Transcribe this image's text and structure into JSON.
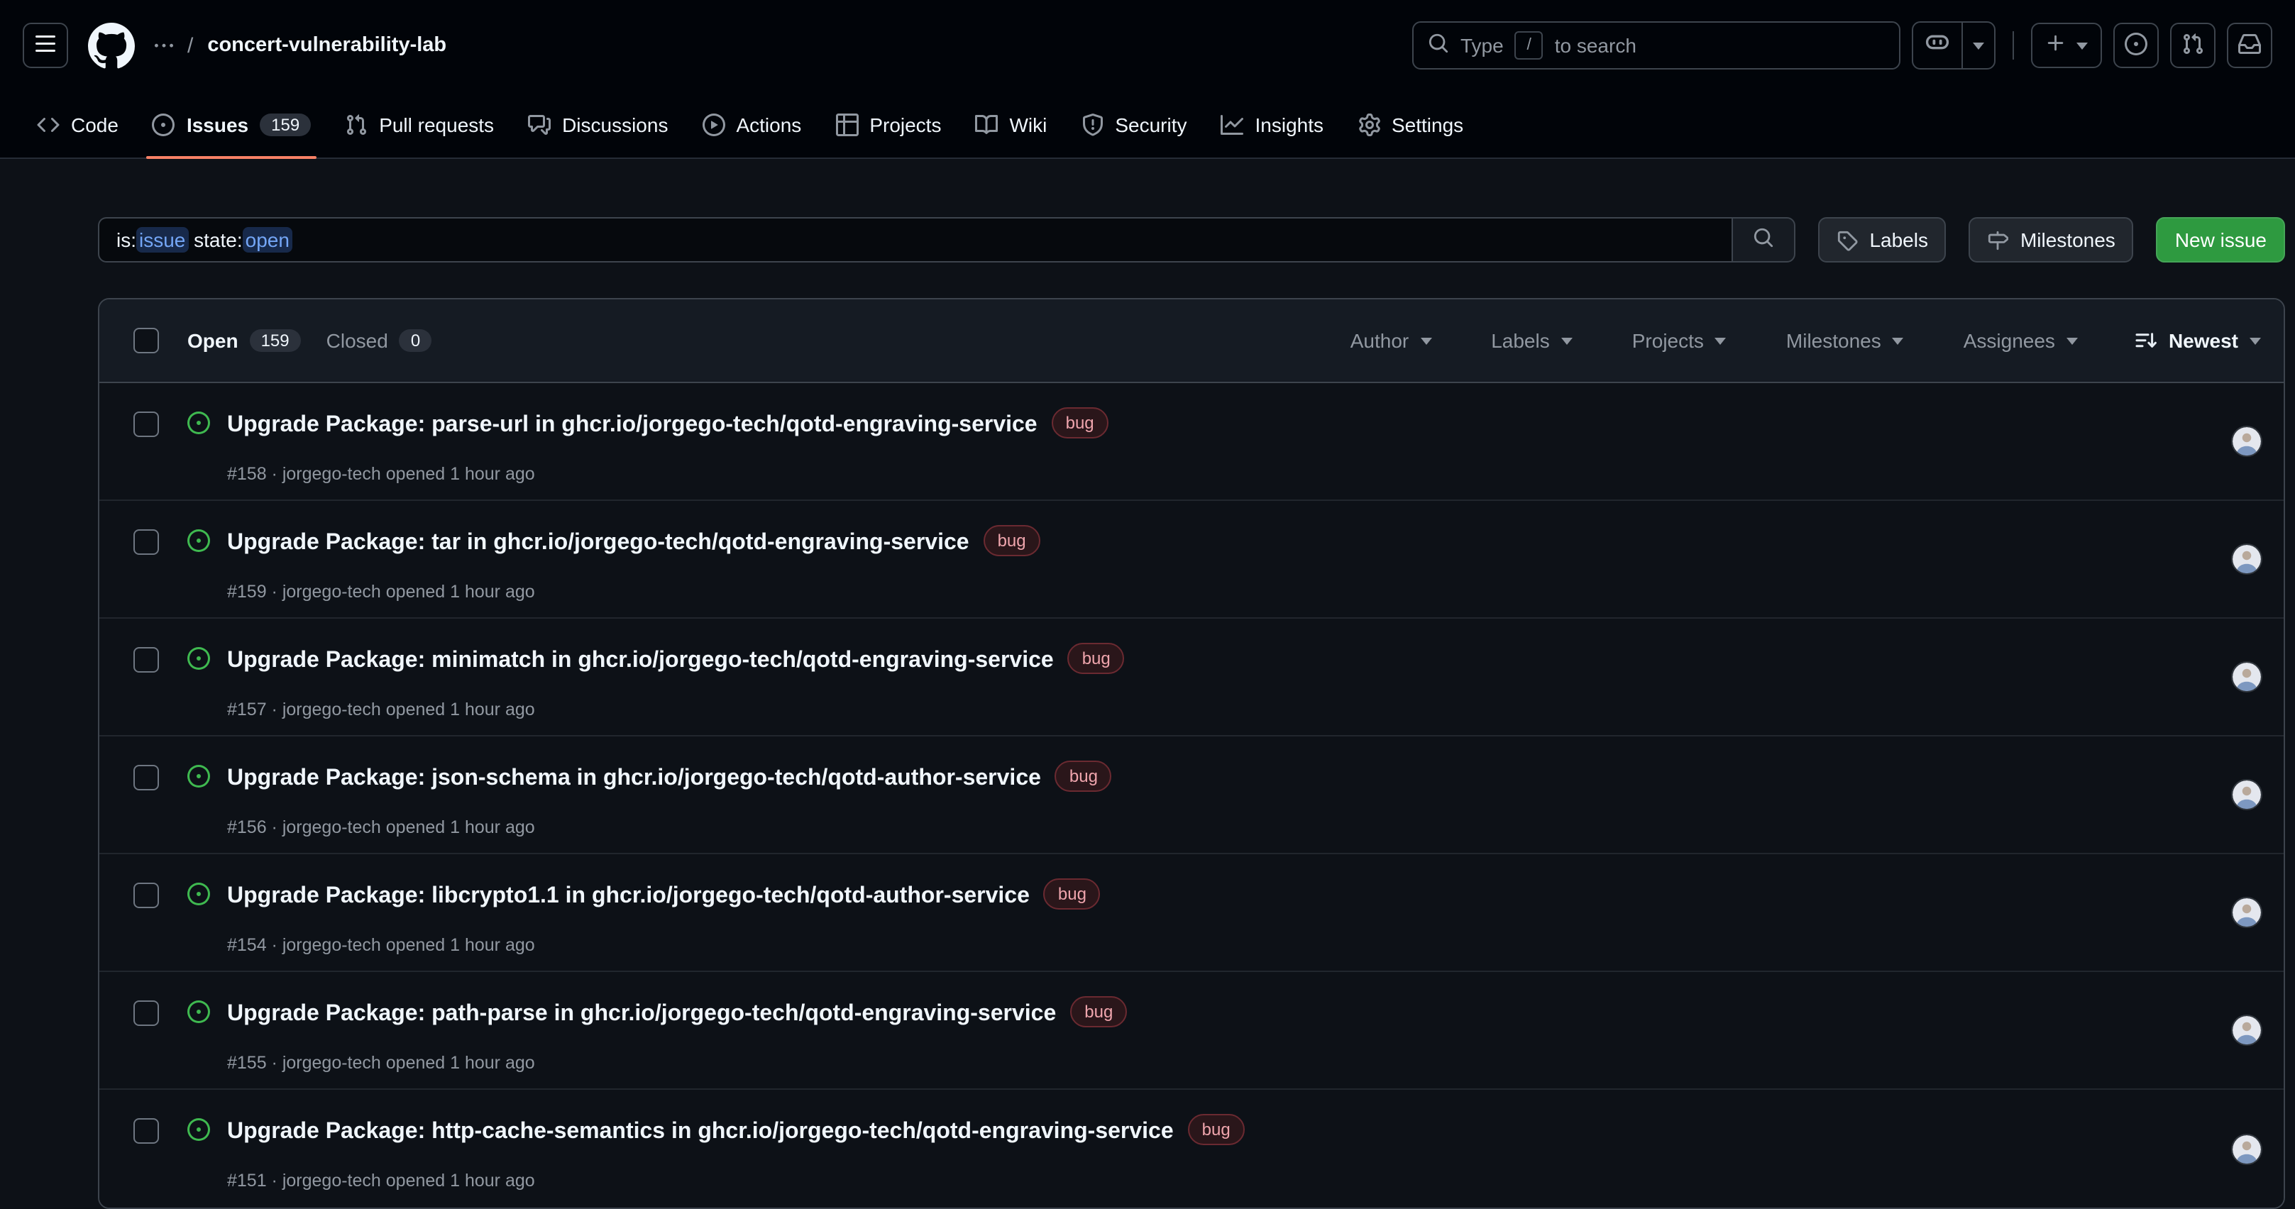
{
  "colors": {
    "header_bg": "#010409",
    "page_bg": "#0d1117",
    "panel_bg": "#151b23",
    "border": "#3d444d",
    "accent_underline": "#f78166",
    "open_green": "#3fb950",
    "new_issue_green": "#2e9a40",
    "qualifier_blue": "#74a6f6",
    "bug_label_text": "#efa5ad",
    "bug_label_bg": "#2a161a",
    "muted_text": "#9198a1"
  },
  "header": {
    "repo": "concert-vulnerability-lab",
    "breadcrumb_separator": "/",
    "search": {
      "prefix": "Type",
      "key": "/",
      "suffix": "to search"
    },
    "icons": [
      "hamburger-icon",
      "github-logo",
      "kebab-horizontal-icon",
      "copilot-icon",
      "plus-icon",
      "issue-opened-icon",
      "git-pull-request-icon",
      "inbox-icon"
    ]
  },
  "nav_tabs": [
    {
      "label": "Code",
      "icon": "code",
      "active": false,
      "count": null
    },
    {
      "label": "Issues",
      "icon": "issue",
      "active": true,
      "count": "159"
    },
    {
      "label": "Pull requests",
      "icon": "pr",
      "active": false,
      "count": null
    },
    {
      "label": "Discussions",
      "icon": "discussion",
      "active": false,
      "count": null
    },
    {
      "label": "Actions",
      "icon": "play",
      "active": false,
      "count": null
    },
    {
      "label": "Projects",
      "icon": "table",
      "active": false,
      "count": null
    },
    {
      "label": "Wiki",
      "icon": "book",
      "active": false,
      "count": null
    },
    {
      "label": "Security",
      "icon": "shield",
      "active": false,
      "count": null
    },
    {
      "label": "Insights",
      "icon": "graph",
      "active": false,
      "count": null
    },
    {
      "label": "Settings",
      "icon": "gear",
      "active": false,
      "count": null
    }
  ],
  "toolbar": {
    "filter_tokens": [
      {
        "text": "is:",
        "type": "plain"
      },
      {
        "text": "issue",
        "type": "qualifier"
      },
      {
        "text": " ",
        "type": "plain"
      },
      {
        "text": "state:",
        "type": "plain"
      },
      {
        "text": "open",
        "type": "qualifier"
      }
    ],
    "labels": "Labels",
    "milestones": "Milestones",
    "new_issue": "New issue"
  },
  "list_header": {
    "open_label": "Open",
    "open_count": "159",
    "closed_label": "Closed",
    "closed_count": "0",
    "filters": [
      "Author",
      "Labels",
      "Projects",
      "Milestones",
      "Assignees"
    ],
    "sort_label": "Newest"
  },
  "issues": [
    {
      "number": "#158",
      "title": "Upgrade Package: parse-url in ghcr.io/jorgego-tech/qotd-engraving-service",
      "label": "bug",
      "meta": "jorgego-tech opened 1 hour ago"
    },
    {
      "number": "#159",
      "title": "Upgrade Package: tar in ghcr.io/jorgego-tech/qotd-engraving-service",
      "label": "bug",
      "meta": "jorgego-tech opened 1 hour ago"
    },
    {
      "number": "#157",
      "title": "Upgrade Package: minimatch in ghcr.io/jorgego-tech/qotd-engraving-service",
      "label": "bug",
      "meta": "jorgego-tech opened 1 hour ago"
    },
    {
      "number": "#156",
      "title": "Upgrade Package: json-schema in ghcr.io/jorgego-tech/qotd-author-service",
      "label": "bug",
      "meta": "jorgego-tech opened 1 hour ago"
    },
    {
      "number": "#154",
      "title": "Upgrade Package: libcrypto1.1 in ghcr.io/jorgego-tech/qotd-author-service",
      "label": "bug",
      "meta": "jorgego-tech opened 1 hour ago"
    },
    {
      "number": "#155",
      "title": "Upgrade Package: path-parse in ghcr.io/jorgego-tech/qotd-engraving-service",
      "label": "bug",
      "meta": "jorgego-tech opened 1 hour ago"
    },
    {
      "number": "#151",
      "title": "Upgrade Package: http-cache-semantics in ghcr.io/jorgego-tech/qotd-engraving-service",
      "label": "bug",
      "meta": "jorgego-tech opened 1 hour ago"
    }
  ],
  "meta_separator": "·"
}
